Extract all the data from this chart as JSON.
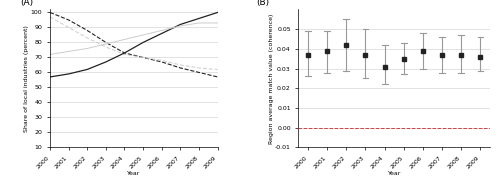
{
  "panel_A": {
    "years": [
      2000,
      2001,
      2002,
      2003,
      2004,
      2005,
      2006,
      2007,
      2008,
      2009
    ],
    "black_dashed": [
      100,
      95,
      88,
      80,
      73,
      70,
      67,
      63,
      60,
      57
    ],
    "grey_dashed": [
      97,
      90,
      83,
      77,
      72,
      70,
      68,
      65,
      63,
      62
    ],
    "black_solid": [
      57,
      59,
      62,
      67,
      73,
      80,
      86,
      92,
      96,
      100
    ],
    "grey_solid": [
      72,
      74,
      76,
      79,
      82,
      85,
      88,
      91,
      93,
      93
    ],
    "ylabel": "Share of local industries (percent)",
    "xlabel": "Year",
    "label": "(A)",
    "ylim": [
      10,
      102
    ],
    "yticks": [
      10,
      20,
      30,
      40,
      50,
      60,
      70,
      80,
      90,
      100
    ]
  },
  "panel_B": {
    "years": [
      2000,
      2001,
      2002,
      2003,
      2004,
      2005,
      2006,
      2007,
      2008,
      2009
    ],
    "means": [
      0.037,
      0.039,
      0.042,
      0.037,
      0.031,
      0.035,
      0.039,
      0.037,
      0.037,
      0.036
    ],
    "upper": [
      0.049,
      0.049,
      0.055,
      0.05,
      0.042,
      0.043,
      0.048,
      0.046,
      0.047,
      0.046
    ],
    "lower": [
      0.026,
      0.028,
      0.029,
      0.025,
      0.022,
      0.027,
      0.03,
      0.028,
      0.028,
      0.029
    ],
    "ylabel": "Region average match value (coherence)",
    "xlabel": "Year",
    "label": "(B)",
    "ylim": [
      -0.01,
      0.06
    ],
    "yticks": [
      -0.01,
      0.0,
      0.01,
      0.02,
      0.03,
      0.04,
      0.05
    ],
    "dashed_line_y": 0.0,
    "dashed_line_color": "#cc4444"
  },
  "background_color": "#ffffff",
  "grid_color": "#cccccc",
  "black_color": "#222222",
  "grey_color_dark": "#aaaaaa",
  "grey_color_light": "#cccccc",
  "error_bar_color": "#999999"
}
